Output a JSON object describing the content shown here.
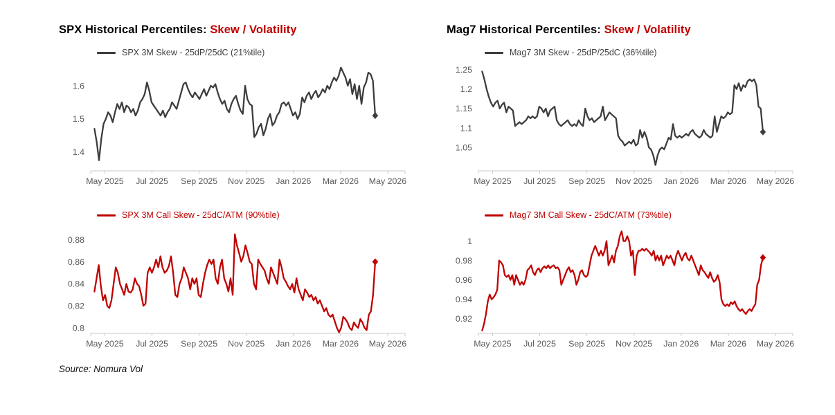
{
  "page": {
    "source": "Source: Nomura Vol"
  },
  "colors": {
    "axis": "#c9c9c9",
    "tick_label": "#595959",
    "title": "#000000",
    "accent_red": "#c00000",
    "dark_line": "#3d3d3d",
    "red_line": "#c00000"
  },
  "chart_data": [
    {
      "id": "spx-3m-skew",
      "type": "line",
      "title": "SPX Historical Percentiles: ",
      "title_accent": "Skew / Volatility",
      "accent_color": "#c00000",
      "legend": "SPX 3M Skew - 25dP/25dC (21%tile)",
      "line_color": "#3d3d3d",
      "legend_text_color": "#3f3f3f",
      "end_marker": "diamond",
      "x_tick_labels": [
        "May 2025",
        "Jul 2025",
        "Sep 2025",
        "Nov 2025",
        "Jan 2026",
        "Mar 2026",
        "May 2026"
      ],
      "y_tick_values": [
        1.4,
        1.5,
        1.6
      ],
      "y_tick_labels": [
        "1.4",
        "1.5",
        "1.6"
      ],
      "ylim": [
        1.343,
        1.669
      ],
      "legend_position": "top",
      "grid": false,
      "values": [
        1.47,
        1.43,
        1.375,
        1.44,
        1.485,
        1.5,
        1.52,
        1.51,
        1.49,
        1.52,
        1.545,
        1.53,
        1.55,
        1.52,
        1.54,
        1.535,
        1.52,
        1.53,
        1.51,
        1.525,
        1.55,
        1.56,
        1.575,
        1.61,
        1.585,
        1.55,
        1.54,
        1.53,
        1.52,
        1.51,
        1.525,
        1.505,
        1.52,
        1.53,
        1.55,
        1.54,
        1.53,
        1.555,
        1.58,
        1.605,
        1.61,
        1.59,
        1.575,
        1.565,
        1.58,
        1.57,
        1.56,
        1.575,
        1.59,
        1.57,
        1.585,
        1.6,
        1.595,
        1.605,
        1.58,
        1.56,
        1.545,
        1.555,
        1.53,
        1.52,
        1.545,
        1.56,
        1.57,
        1.545,
        1.525,
        1.515,
        1.6,
        1.56,
        1.545,
        1.54,
        1.445,
        1.455,
        1.475,
        1.485,
        1.45,
        1.47,
        1.5,
        1.515,
        1.48,
        1.49,
        1.51,
        1.52,
        1.545,
        1.55,
        1.54,
        1.55,
        1.53,
        1.51,
        1.52,
        1.5,
        1.515,
        1.565,
        1.55,
        1.57,
        1.58,
        1.56,
        1.575,
        1.585,
        1.565,
        1.575,
        1.59,
        1.58,
        1.6,
        1.59,
        1.61,
        1.625,
        1.615,
        1.63,
        1.655,
        1.64,
        1.625,
        1.6,
        1.62,
        1.575,
        1.605,
        1.56,
        1.6,
        1.545,
        1.595,
        1.61,
        1.64,
        1.635,
        1.615,
        1.51
      ]
    },
    {
      "id": "mag7-3m-skew",
      "type": "line",
      "title": "Mag7 Historical Percentiles: ",
      "title_accent": "Skew / Volatility",
      "accent_color": "#c00000",
      "legend": "Mag7 3M Skew - 25dP/25dC (36%tile)",
      "line_color": "#3d3d3d",
      "legend_text_color": "#3f3f3f",
      "end_marker": "diamond",
      "x_tick_labels": [
        "May 2025",
        "Jul 2025",
        "Sep 2025",
        "Nov 2025",
        "Jan 2026",
        "Mar 2026",
        "May 2026"
      ],
      "y_tick_values": [
        1.05,
        1.1,
        1.15,
        1.2,
        1.25
      ],
      "y_tick_labels": [
        "1.05",
        "1.1",
        "1.15",
        "1.2",
        "1.25"
      ],
      "ylim": [
        0.99,
        1.267
      ],
      "legend_position": "top",
      "grid": false,
      "values": [
        1.245,
        1.225,
        1.2,
        1.18,
        1.165,
        1.155,
        1.165,
        1.17,
        1.15,
        1.16,
        1.165,
        1.14,
        1.155,
        1.15,
        1.145,
        1.105,
        1.11,
        1.115,
        1.11,
        1.115,
        1.12,
        1.13,
        1.125,
        1.13,
        1.125,
        1.13,
        1.155,
        1.15,
        1.14,
        1.15,
        1.13,
        1.145,
        1.15,
        1.155,
        1.12,
        1.11,
        1.105,
        1.11,
        1.115,
        1.12,
        1.11,
        1.105,
        1.11,
        1.105,
        1.12,
        1.11,
        1.105,
        1.15,
        1.13,
        1.12,
        1.125,
        1.115,
        1.12,
        1.125,
        1.13,
        1.155,
        1.12,
        1.13,
        1.14,
        1.135,
        1.13,
        1.125,
        1.08,
        1.07,
        1.065,
        1.055,
        1.06,
        1.065,
        1.06,
        1.07,
        1.055,
        1.06,
        1.095,
        1.075,
        1.09,
        1.075,
        1.05,
        1.045,
        1.03,
        1.005,
        1.03,
        1.045,
        1.05,
        1.045,
        1.06,
        1.075,
        1.07,
        1.11,
        1.08,
        1.075,
        1.08,
        1.075,
        1.08,
        1.085,
        1.08,
        1.09,
        1.095,
        1.085,
        1.08,
        1.075,
        1.08,
        1.095,
        1.085,
        1.08,
        1.075,
        1.08,
        1.13,
        1.09,
        1.11,
        1.13,
        1.125,
        1.13,
        1.14,
        1.135,
        1.14,
        1.21,
        1.2,
        1.215,
        1.195,
        1.21,
        1.205,
        1.22,
        1.225,
        1.22,
        1.225,
        1.21,
        1.155,
        1.15,
        1.09
      ]
    },
    {
      "id": "spx-3m-call-skew",
      "type": "line",
      "legend": "SPX 3M Call Skew - 25dC/ATM (90%tile)",
      "line_color": "#c00000",
      "legend_text_color": "#c00000",
      "end_marker": "diamond",
      "x_tick_labels": [
        "May 2025",
        "Jul 2025",
        "Sep 2025",
        "Nov 2025",
        "Jan 2026",
        "Mar 2026",
        "May 2026"
      ],
      "y_tick_values": [
        0.8,
        0.82,
        0.84,
        0.86,
        0.88
      ],
      "y_tick_labels": [
        "0.8",
        "0.82",
        "0.84",
        "0.86",
        "0.88"
      ],
      "ylim": [
        0.795,
        0.893
      ],
      "legend_position": "top",
      "grid": false,
      "values": [
        0.833,
        0.845,
        0.857,
        0.838,
        0.825,
        0.83,
        0.82,
        0.818,
        0.825,
        0.84,
        0.855,
        0.85,
        0.84,
        0.835,
        0.83,
        0.84,
        0.833,
        0.832,
        0.835,
        0.845,
        0.84,
        0.838,
        0.83,
        0.82,
        0.822,
        0.85,
        0.855,
        0.85,
        0.855,
        0.862,
        0.855,
        0.865,
        0.855,
        0.85,
        0.852,
        0.856,
        0.865,
        0.85,
        0.83,
        0.828,
        0.84,
        0.845,
        0.855,
        0.85,
        0.845,
        0.835,
        0.845,
        0.84,
        0.845,
        0.83,
        0.828,
        0.84,
        0.85,
        0.857,
        0.862,
        0.858,
        0.862,
        0.845,
        0.84,
        0.855,
        0.862,
        0.845,
        0.84,
        0.833,
        0.845,
        0.83,
        0.885,
        0.875,
        0.868,
        0.86,
        0.865,
        0.875,
        0.868,
        0.86,
        0.858,
        0.84,
        0.835,
        0.862,
        0.858,
        0.855,
        0.852,
        0.845,
        0.84,
        0.855,
        0.85,
        0.845,
        0.84,
        0.862,
        0.855,
        0.845,
        0.842,
        0.838,
        0.835,
        0.84,
        0.832,
        0.845,
        0.835,
        0.83,
        0.825,
        0.835,
        0.832,
        0.828,
        0.83,
        0.825,
        0.828,
        0.822,
        0.825,
        0.82,
        0.815,
        0.818,
        0.812,
        0.81,
        0.812,
        0.806,
        0.8,
        0.796,
        0.8,
        0.81,
        0.808,
        0.805,
        0.8,
        0.798,
        0.805,
        0.802,
        0.8,
        0.808,
        0.805,
        0.8,
        0.798,
        0.812,
        0.815,
        0.83,
        0.86
      ]
    },
    {
      "id": "mag7-3m-call-skew",
      "type": "line",
      "legend": "Mag7 3M Call Skew - 25dC/ATM (73%tile)",
      "line_color": "#c00000",
      "legend_text_color": "#c00000",
      "end_marker": "diamond",
      "x_tick_labels": [
        "May 2025",
        "Jul 2025",
        "Sep 2025",
        "Nov 2025",
        "Jan 2026",
        "Mar 2026",
        "May 2026"
      ],
      "y_tick_values": [
        0.92,
        0.94,
        0.96,
        0.98,
        1
      ],
      "y_tick_labels": [
        "0.92",
        "0.94",
        "0.96",
        "0.98",
        "1"
      ],
      "ylim": [
        0.905,
        1.016
      ],
      "legend_position": "top",
      "grid": false,
      "values": [
        0.908,
        0.915,
        0.925,
        0.938,
        0.945,
        0.94,
        0.942,
        0.945,
        0.95,
        0.98,
        0.978,
        0.975,
        0.965,
        0.963,
        0.965,
        0.96,
        0.965,
        0.955,
        0.965,
        0.96,
        0.955,
        0.958,
        0.955,
        0.96,
        0.97,
        0.972,
        0.975,
        0.968,
        0.965,
        0.97,
        0.972,
        0.968,
        0.972,
        0.974,
        0.972,
        0.975,
        0.972,
        0.974,
        0.975,
        0.972,
        0.973,
        0.97,
        0.955,
        0.96,
        0.965,
        0.97,
        0.973,
        0.968,
        0.97,
        0.965,
        0.955,
        0.96,
        0.968,
        0.97,
        0.965,
        0.963,
        0.965,
        0.975,
        0.985,
        0.99,
        0.995,
        0.99,
        0.985,
        0.99,
        0.985,
        0.99,
        1.0,
        0.975,
        0.98,
        0.985,
        0.978,
        0.99,
        0.995,
        1.005,
        1.01,
        1.0,
        1.0,
        1.005,
        1.0,
        0.985,
        0.99,
        0.965,
        0.985,
        0.99,
        0.99,
        0.992,
        0.99,
        0.992,
        0.99,
        0.988,
        0.985,
        0.99,
        0.98,
        0.985,
        0.98,
        0.985,
        0.975,
        0.98,
        0.985,
        0.982,
        0.985,
        0.98,
        0.975,
        0.985,
        0.99,
        0.985,
        0.98,
        0.985,
        0.988,
        0.982,
        0.98,
        0.985,
        0.98,
        0.975,
        0.97,
        0.965,
        0.975,
        0.97,
        0.968,
        0.965,
        0.962,
        0.968,
        0.962,
        0.958,
        0.96,
        0.965,
        0.958,
        0.94,
        0.935,
        0.933,
        0.935,
        0.933,
        0.937,
        0.935,
        0.938,
        0.933,
        0.93,
        0.928,
        0.93,
        0.927,
        0.925,
        0.928,
        0.93,
        0.928,
        0.932,
        0.935,
        0.955,
        0.96,
        0.975,
        0.983
      ]
    }
  ]
}
